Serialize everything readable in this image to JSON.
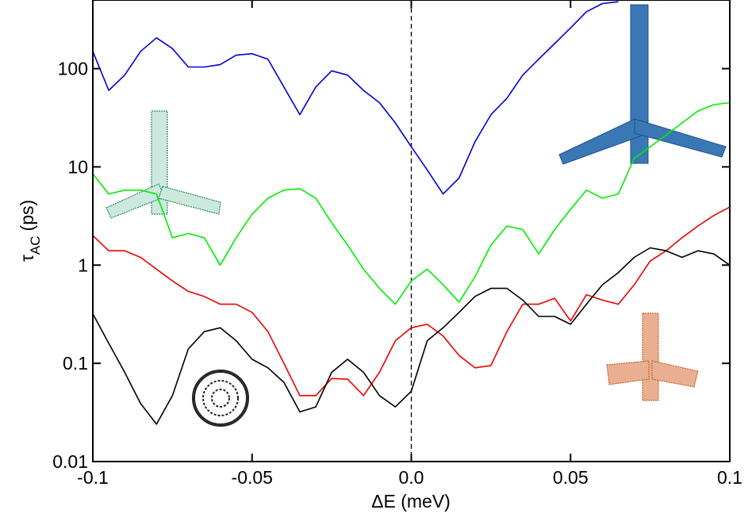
{
  "chart_data": {
    "type": "line",
    "x_label": "ΔE (meV)",
    "y_label": {
      "symbol": "τ",
      "subscript": "AC",
      "unit": "(ps)"
    },
    "log_y": true,
    "vline": 0,
    "x": [
      -0.1,
      -0.095,
      -0.09,
      -0.085,
      -0.08,
      -0.075,
      -0.07,
      -0.065,
      -0.06,
      -0.055,
      -0.05,
      -0.045,
      -0.04,
      -0.035,
      -0.03,
      -0.025,
      -0.02,
      -0.015,
      -0.01,
      -0.005,
      0,
      0.005,
      0.01,
      0.015,
      0.02,
      0.025,
      0.03,
      0.035,
      0.04,
      0.045,
      0.05,
      0.055,
      0.06,
      0.065,
      0.07,
      0.075,
      0.08,
      0.085,
      0.09,
      0.095,
      0.1
    ],
    "series": [
      {
        "color": "#0000dd",
        "values": [
          150,
          60,
          86,
          150,
          206,
          160,
          104,
          104,
          110,
          137,
          142,
          125,
          65,
          34,
          65,
          95,
          86,
          60,
          45,
          28,
          16,
          9.3,
          5.3,
          7.7,
          18,
          34,
          50,
          86,
          125,
          180,
          260,
          380,
          460,
          480,
          null,
          null,
          null,
          null,
          null,
          null,
          null
        ]
      },
      {
        "color": "#00ee00",
        "values": [
          8.5,
          5.3,
          5.8,
          5.8,
          5.3,
          1.9,
          2.1,
          1.9,
          1.0,
          1.9,
          3.3,
          4.8,
          5.8,
          6.0,
          4.8,
          2.7,
          1.6,
          0.91,
          0.58,
          0.4,
          0.69,
          0.91,
          0.63,
          0.42,
          0.76,
          1.6,
          2.5,
          2.3,
          1.3,
          2.3,
          3.7,
          5.8,
          4.8,
          5.3,
          12.2,
          16,
          21,
          28,
          37,
          43,
          45
        ]
      },
      {
        "color": "#ee0000",
        "values": [
          2.0,
          1.4,
          1.4,
          1.2,
          0.91,
          0.69,
          0.54,
          0.48,
          0.4,
          0.4,
          0.33,
          0.21,
          0.1,
          0.047,
          0.047,
          0.07,
          0.069,
          0.047,
          0.081,
          0.17,
          0.23,
          0.25,
          0.19,
          0.12,
          0.09,
          0.095,
          0.21,
          0.4,
          0.4,
          0.46,
          0.27,
          0.5,
          0.44,
          0.4,
          0.63,
          1.1,
          1.4,
          1.9,
          2.5,
          3.2,
          3.9
        ]
      },
      {
        "color": "#000000",
        "values": [
          0.32,
          0.16,
          0.081,
          0.039,
          0.024,
          0.047,
          0.14,
          0.21,
          0.23,
          0.17,
          0.11,
          0.09,
          0.064,
          0.032,
          0.036,
          0.081,
          0.11,
          0.081,
          0.047,
          0.036,
          0.052,
          0.17,
          0.23,
          0.33,
          0.48,
          0.58,
          0.58,
          0.44,
          0.3,
          0.3,
          0.25,
          0.4,
          0.63,
          0.84,
          1.2,
          1.5,
          1.4,
          1.2,
          1.4,
          1.3,
          1.0
        ]
      }
    ],
    "xlim": [
      -0.1,
      0.1
    ],
    "xticks": [
      -0.1,
      -0.05,
      {
        "value": 0,
        "label": "0.0"
      },
      0.05,
      0.1
    ],
    "ylim": [
      0.01,
      500
    ],
    "yticks": [
      0.01,
      0.1,
      1,
      10,
      100
    ]
  }
}
